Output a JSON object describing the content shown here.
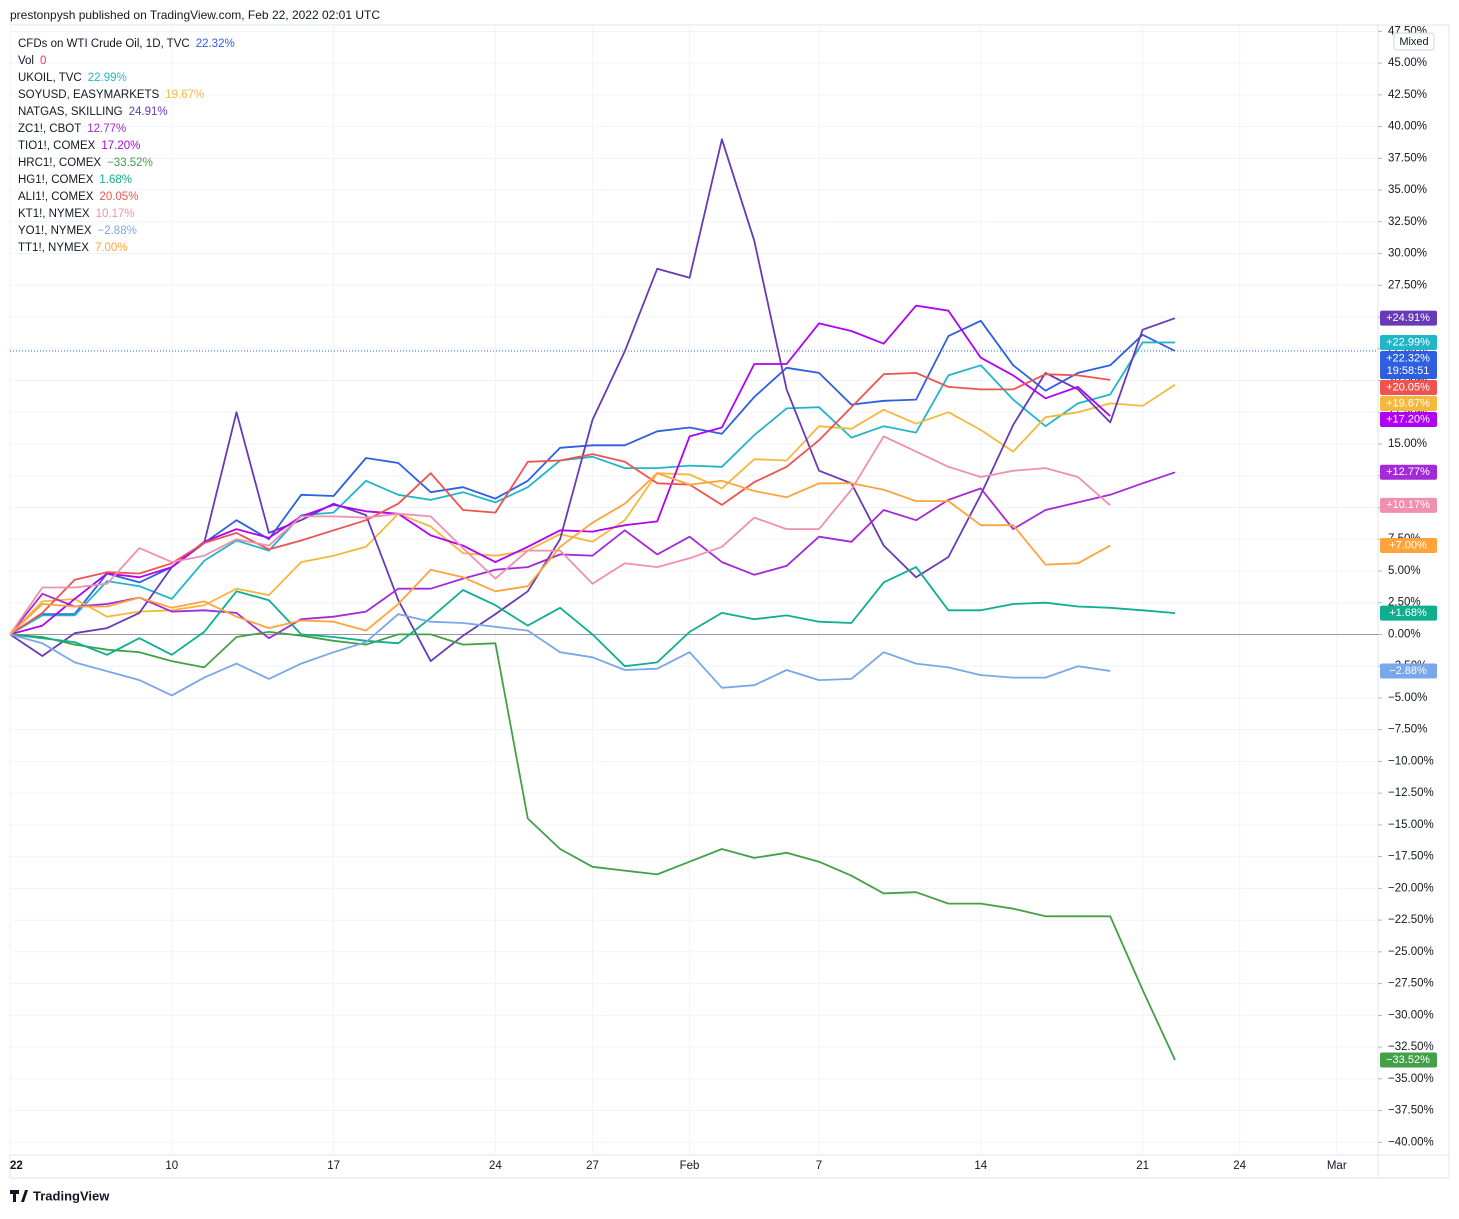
{
  "header": "prestonpysh published on TradingView.com, Feb 22, 2022 02:01 UTC",
  "footer": "TradingView",
  "scale_button": "Mixed",
  "chart_data": {
    "type": "line",
    "categories": [
      "22",
      null,
      null,
      null,
      null,
      "10",
      null,
      null,
      null,
      null,
      "17",
      null,
      null,
      null,
      null,
      "24",
      null,
      null,
      "27",
      null,
      null,
      "Feb",
      null,
      null,
      null,
      "7",
      null,
      null,
      null,
      null,
      "14",
      null,
      null,
      null,
      null,
      "21",
      null,
      null,
      "24",
      null,
      null,
      "Mar",
      null
    ],
    "ylim": [
      -41,
      48
    ],
    "yticks": [
      {
        "value": 47.5,
        "label": "47.50%"
      },
      {
        "value": 45,
        "label": "45.00%"
      },
      {
        "value": 42.5,
        "label": "42.50%"
      },
      {
        "value": 40,
        "label": "40.00%"
      },
      {
        "value": 37.5,
        "label": "37.50%"
      },
      {
        "value": 35,
        "label": "35.00%"
      },
      {
        "value": 32.5,
        "label": "32.50%"
      },
      {
        "value": 30,
        "label": "30.00%"
      },
      {
        "value": 27.5,
        "label": "27.50%"
      },
      {
        "value": 25,
        "label": "25.00%"
      },
      {
        "value": 22.5,
        "label": "22.50%"
      },
      {
        "value": 20,
        "label": "20.00%"
      },
      {
        "value": 17.5,
        "label": "17.50%"
      },
      {
        "value": 15,
        "label": "15.00%"
      },
      {
        "value": 12.5,
        "label": "12.50%"
      },
      {
        "value": 10,
        "label": "10.00%"
      },
      {
        "value": 7.5,
        "label": "7.50%"
      },
      {
        "value": 5,
        "label": "5.00%"
      },
      {
        "value": 2.5,
        "label": "2.50%"
      },
      {
        "value": 0,
        "label": "0.00%"
      },
      {
        "value": -2.5,
        "label": "−2.50%"
      },
      {
        "value": -5,
        "label": "−5.00%"
      },
      {
        "value": -7.5,
        "label": "−7.50%"
      },
      {
        "value": -10,
        "label": "−10.00%"
      },
      {
        "value": -12.5,
        "label": "−12.50%"
      },
      {
        "value": -15,
        "label": "−15.00%"
      },
      {
        "value": -17.5,
        "label": "−17.50%"
      },
      {
        "value": -20,
        "label": "−20.00%"
      },
      {
        "value": -22.5,
        "label": "−22.50%"
      },
      {
        "value": -25,
        "label": "−25.00%"
      },
      {
        "value": -27.5,
        "label": "−27.50%"
      },
      {
        "value": -30,
        "label": "−30.00%"
      },
      {
        "value": -32.5,
        "label": "−32.50%"
      },
      {
        "value": -35,
        "label": "−35.00%"
      },
      {
        "value": -37.5,
        "label": "−37.50%"
      },
      {
        "value": -40,
        "label": "−40.00%"
      }
    ],
    "grid": true,
    "volume": {
      "name": "Vol",
      "label": "0",
      "color": "#f23645"
    },
    "series": [
      {
        "name": "CFDs on WTI Crude Oil, 1D, TVC",
        "color": "#2e5fe0",
        "legend_label": "22.32%",
        "badge_label": "+22.32%",
        "last": 22.32,
        "countdown": "19:58:51",
        "values": [
          0,
          1.6,
          1.6,
          4.8,
          4.1,
          5.3,
          7.2,
          9.0,
          7.5,
          11.0,
          10.9,
          13.9,
          13.5,
          11.2,
          11.6,
          10.7,
          12.1,
          14.7,
          14.9,
          14.9,
          16.0,
          16.3,
          15.8,
          18.7,
          21.0,
          20.6,
          18.1,
          18.4,
          18.5,
          23.5,
          24.7,
          21.2,
          19.2,
          20.6,
          21.2,
          23.6,
          22.32,
          null,
          null,
          null,
          null,
          null,
          null
        ]
      },
      {
        "name": "UKOIL, TVC",
        "color": "#22b5c8",
        "legend_label": "22.99%",
        "badge_label": "+22.99%",
        "last": 22.99,
        "values": [
          0,
          1.5,
          1.5,
          4.2,
          3.8,
          2.8,
          5.8,
          7.4,
          6.6,
          9.4,
          9.6,
          12.1,
          11.0,
          10.6,
          11.2,
          10.4,
          11.6,
          13.7,
          14.0,
          13.1,
          13.1,
          13.3,
          13.2,
          15.7,
          17.8,
          17.9,
          15.5,
          16.4,
          15.9,
          20.4,
          21.2,
          18.5,
          16.4,
          18.2,
          18.9,
          23.0,
          22.99,
          null,
          null,
          null,
          null,
          null,
          null
        ]
      },
      {
        "name": "SOYUSD, EASYMARKETS",
        "color": "#f5b83d",
        "legend_label": "19.67%",
        "badge_label": "+19.67%",
        "last": 19.67,
        "values": [
          0,
          2.6,
          2.8,
          1.4,
          1.8,
          1.9,
          2.3,
          3.6,
          3.1,
          5.7,
          6.2,
          6.9,
          9.5,
          8.5,
          6.4,
          6.2,
          6.6,
          7.9,
          7.3,
          9.0,
          12.7,
          12.6,
          11.5,
          13.8,
          13.7,
          16.4,
          16.2,
          17.7,
          16.6,
          17.5,
          16.1,
          14.4,
          17.1,
          17.5,
          18.2,
          18.0,
          19.67,
          null,
          null,
          null,
          null,
          null,
          null
        ]
      },
      {
        "name": "NATGAS, SKILLING",
        "color": "#673ab7",
        "legend_label": "24.91%",
        "badge_label": "+24.91%",
        "last": 24.91,
        "values": [
          0,
          -1.7,
          0.1,
          0.5,
          1.7,
          5.3,
          7.2,
          17.5,
          8.0,
          9.0,
          10.3,
          9.4,
          2.7,
          -2.1,
          -0.1,
          1.6,
          3.4,
          7.5,
          16.9,
          22.3,
          28.8,
          28.1,
          39.0,
          31.0,
          19.3,
          12.9,
          11.9,
          7.0,
          4.5,
          6.1,
          11.0,
          16.5,
          20.6,
          19.3,
          16.7,
          24.0,
          24.91,
          null,
          null,
          null,
          null,
          null,
          null
        ]
      },
      {
        "name": "ZC1!, CBOT",
        "color": "#a32ad8",
        "legend_label": "12.77%",
        "badge_label": "+12.77%",
        "last": 12.77,
        "values": [
          0,
          3.2,
          2.2,
          2.4,
          2.9,
          1.8,
          1.9,
          1.7,
          -0.3,
          1.2,
          1.4,
          1.8,
          3.6,
          3.6,
          4.4,
          5.1,
          5.3,
          6.3,
          6.2,
          8.2,
          6.3,
          7.7,
          5.7,
          4.7,
          5.4,
          7.7,
          7.3,
          9.8,
          9.0,
          10.6,
          11.5,
          8.3,
          9.8,
          10.4,
          11.0,
          11.9,
          12.77,
          null,
          null,
          null,
          null,
          null,
          null
        ]
      },
      {
        "name": "TIO1!, COMEX",
        "color": "#b000f5",
        "legend_label": "17.20%",
        "badge_label": "+17.20%",
        "last": 17.2,
        "values": [
          0,
          0.7,
          2.8,
          4.8,
          4.5,
          5.3,
          7.3,
          8.3,
          7.6,
          9.3,
          10.2,
          9.7,
          9.5,
          7.8,
          7.0,
          5.7,
          6.9,
          8.2,
          8.1,
          8.6,
          8.9,
          15.6,
          16.3,
          21.3,
          21.3,
          24.5,
          23.9,
          22.9,
          25.9,
          25.5,
          21.8,
          20.4,
          18.6,
          19.5,
          17.2,
          null,
          null,
          null,
          null,
          null,
          null,
          null,
          null
        ]
      },
      {
        "name": "HRC1!, COMEX",
        "color": "#43a047",
        "legend_label": "−33.52%",
        "badge_label": "−33.52%",
        "last": -33.52,
        "values": [
          0,
          -0.2,
          -0.8,
          -1.2,
          -1.4,
          -2.1,
          -2.6,
          -0.2,
          0.2,
          -0.1,
          -0.5,
          -0.8,
          0,
          0,
          -0.8,
          -0.7,
          -14.5,
          -16.9,
          -18.3,
          -18.6,
          -18.9,
          -17.9,
          -16.9,
          -17.6,
          -17.2,
          -17.9,
          -19.0,
          -20.4,
          -20.3,
          -21.2,
          -21.2,
          -21.6,
          -22.2,
          -22.2,
          -22.2,
          -28.0,
          -33.52,
          null,
          null,
          null,
          null,
          null,
          null
        ]
      },
      {
        "name": "HG1!, COMEX",
        "color": "#0fae8f",
        "legend_label": "1.68%",
        "badge_label": "+1.68%",
        "last": 1.68,
        "values": [
          0,
          -0.3,
          -0.6,
          -1.6,
          -0.3,
          -1.6,
          0.2,
          3.4,
          2.7,
          0,
          -0.2,
          -0.5,
          -0.7,
          1.3,
          3.5,
          2.3,
          0.7,
          2.1,
          0,
          -2.5,
          -2.2,
          0.2,
          1.7,
          1.2,
          1.5,
          1.0,
          0.9,
          4.1,
          5.3,
          1.9,
          1.9,
          2.4,
          2.5,
          2.2,
          2.1,
          1.9,
          1.68,
          null,
          null,
          null,
          null,
          null,
          null
        ]
      },
      {
        "name": "ALI1!, COMEX",
        "color": "#ef5350",
        "legend_label": "20.05%",
        "badge_label": "+20.05%",
        "last": 20.05,
        "values": [
          0,
          1.7,
          4.3,
          4.9,
          4.8,
          5.6,
          7.2,
          8.0,
          6.7,
          7.4,
          8.2,
          9.0,
          10.3,
          12.7,
          9.8,
          9.6,
          13.6,
          13.7,
          14.2,
          13.6,
          11.9,
          11.8,
          10.2,
          12.0,
          13.2,
          15.3,
          17.9,
          20.5,
          20.6,
          19.5,
          19.3,
          19.3,
          20.5,
          20.4,
          20.05,
          null,
          null,
          null,
          null,
          null,
          null,
          null,
          null
        ]
      },
      {
        "name": "KT1!, NYMEX",
        "color": "#f08fae",
        "legend_label": "10.17%",
        "badge_label": "+10.17%",
        "last": 10.17,
        "values": [
          0,
          3.7,
          3.7,
          4.0,
          6.8,
          5.7,
          6.2,
          7.5,
          7.0,
          9.3,
          9.3,
          9.2,
          9.5,
          9.3,
          6.8,
          4.4,
          6.6,
          6.6,
          4.0,
          5.6,
          5.3,
          6.0,
          6.9,
          9.2,
          8.3,
          8.3,
          11.4,
          15.6,
          14.4,
          13.2,
          12.4,
          12.9,
          13.1,
          12.4,
          10.17,
          null,
          null,
          null,
          null,
          null,
          null,
          null,
          null
        ]
      },
      {
        "name": "YO1!, NYMEX",
        "color": "#7aa6ea",
        "legend_label": "−2.88%",
        "badge_label": "−2.88%",
        "last": -2.88,
        "values": [
          0,
          -0.7,
          -2.2,
          -2.9,
          -3.6,
          -4.8,
          -3.4,
          -2.3,
          -3.5,
          -2.3,
          -1.4,
          -0.6,
          1.6,
          1.0,
          0.9,
          0.6,
          0.3,
          -1.4,
          -1.8,
          -2.8,
          -2.7,
          -1.4,
          -4.2,
          -4.0,
          -2.8,
          -3.6,
          -3.5,
          -1.4,
          -2.3,
          -2.6,
          -3.2,
          -3.4,
          -3.4,
          -2.5,
          -2.88,
          null,
          null,
          null,
          null,
          null,
          null,
          null,
          null
        ]
      },
      {
        "name": "TT1!, NYMEX",
        "color": "#ffa33a",
        "legend_label": "7.00%",
        "badge_label": "+7.00%",
        "last": 7.0,
        "values": [
          0,
          2.4,
          2.2,
          2.2,
          2.9,
          2.1,
          2.6,
          1.4,
          0.5,
          1.1,
          1.0,
          0.3,
          2.4,
          5.1,
          4.5,
          3.4,
          3.8,
          6.9,
          8.8,
          10.3,
          12.7,
          11.8,
          12.1,
          11.3,
          10.8,
          11.9,
          11.9,
          11.4,
          10.5,
          10.5,
          8.6,
          8.6,
          5.5,
          5.6,
          7.0,
          null,
          null,
          null,
          null,
          null,
          null,
          null,
          null
        ]
      }
    ]
  }
}
